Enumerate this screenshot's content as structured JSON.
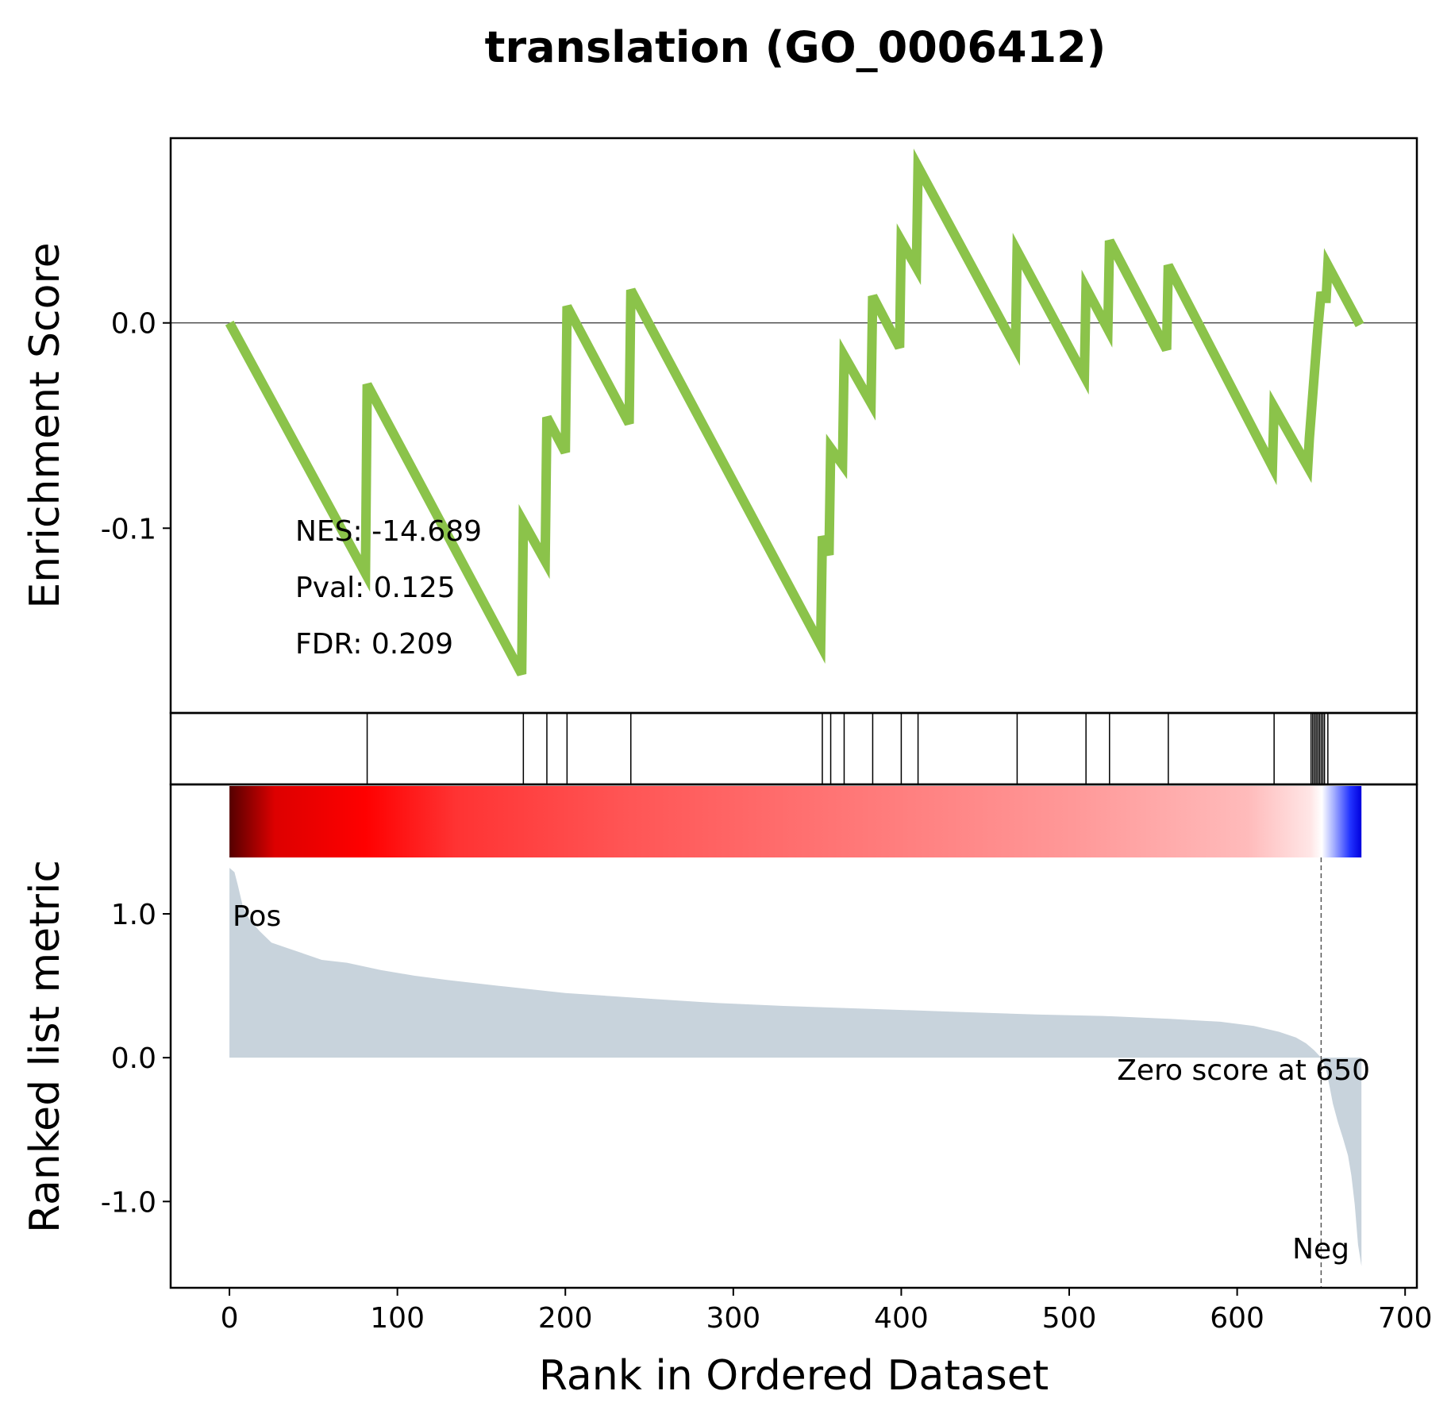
{
  "chart_data": {
    "type": "line",
    "title": "translation (GO_0006412)",
    "xlabel": "Rank in Ordered Dataset",
    "ylabel_top": "Enrichment Score",
    "ylabel_bottom": "Ranked list metric",
    "xlim": [
      -35,
      707
    ],
    "xticks": [
      0,
      100,
      200,
      300,
      400,
      500,
      600,
      700
    ],
    "xtick_labels": [
      "0",
      "100",
      "200",
      "300",
      "400",
      "500",
      "600",
      "700"
    ],
    "es_ylim": [
      -0.19,
      0.09
    ],
    "es_yticks": [
      0.0,
      -0.1
    ],
    "es_ytick_labels": [
      "0.0",
      "-0.1"
    ],
    "metric_ylim": [
      -1.6,
      1.9
    ],
    "metric_yticks": [
      1.0,
      0.0,
      -1.0
    ],
    "metric_ytick_labels": [
      "1.0",
      "0.0",
      "-1.0"
    ],
    "grid": false,
    "stats": {
      "nes": "NES: -14.689",
      "pval": "Pval: 0.125",
      "fdr": "FDR: 0.209"
    },
    "pos_label": "Pos",
    "neg_label": "Neg",
    "zero_score_label": "Zero score at 650",
    "zero_score_rank": 650,
    "total_ranks": 674,
    "colors": {
      "es_line": "#8bc34a",
      "metric_fill": "#c8d3dc",
      "pos": "#ff0000",
      "neg": "#0000ff"
    },
    "hit_ranks": [
      82,
      175,
      189,
      201,
      239,
      353,
      358,
      366,
      383,
      400,
      410,
      469,
      510,
      524,
      559,
      622,
      644,
      645,
      646,
      647,
      648,
      649,
      650,
      651,
      652,
      654
    ],
    "es_curve": {
      "x": [
        0,
        81,
        82,
        174,
        175,
        188,
        189,
        200,
        201,
        238,
        239,
        352,
        353,
        357,
        358,
        365,
        366,
        382,
        383,
        399,
        400,
        409,
        410,
        468,
        469,
        509,
        510,
        523,
        524,
        558,
        559,
        621,
        622,
        642,
        643,
        645,
        648,
        650,
        651,
        653,
        654,
        673
      ],
      "y": [
        0.0,
        -0.122,
        -0.03,
        -0.171,
        -0.097,
        -0.116,
        -0.046,
        -0.063,
        0.008,
        -0.049,
        0.016,
        -0.157,
        -0.104,
        -0.113,
        -0.061,
        -0.069,
        -0.016,
        -0.039,
        0.013,
        -0.012,
        0.04,
        0.027,
        0.076,
        -0.012,
        0.035,
        -0.026,
        0.017,
        -0.003,
        0.04,
        -0.013,
        0.028,
        -0.07,
        -0.041,
        -0.07,
        -0.056,
        -0.035,
        -0.003,
        0.015,
        0.012,
        0.012,
        0.028,
        -0.001
      ]
    },
    "metric_curve": {
      "x": [
        0,
        3,
        5,
        8,
        12,
        18,
        25,
        35,
        45,
        55,
        70,
        90,
        110,
        130,
        160,
        200,
        250,
        290,
        330,
        380,
        430,
        480,
        520,
        560,
        590,
        610,
        625,
        635,
        641,
        646,
        650,
        653,
        655,
        657,
        660,
        663,
        666,
        668,
        670,
        672,
        674
      ],
      "y": [
        1.32,
        1.29,
        1.2,
        1.05,
        0.96,
        0.88,
        0.8,
        0.76,
        0.72,
        0.68,
        0.66,
        0.61,
        0.57,
        0.54,
        0.5,
        0.45,
        0.41,
        0.38,
        0.36,
        0.34,
        0.32,
        0.3,
        0.29,
        0.27,
        0.25,
        0.22,
        0.18,
        0.14,
        0.1,
        0.05,
        0.0,
        -0.08,
        -0.2,
        -0.32,
        -0.45,
        -0.56,
        -0.68,
        -0.82,
        -1.02,
        -1.3,
        -1.45
      ]
    }
  }
}
